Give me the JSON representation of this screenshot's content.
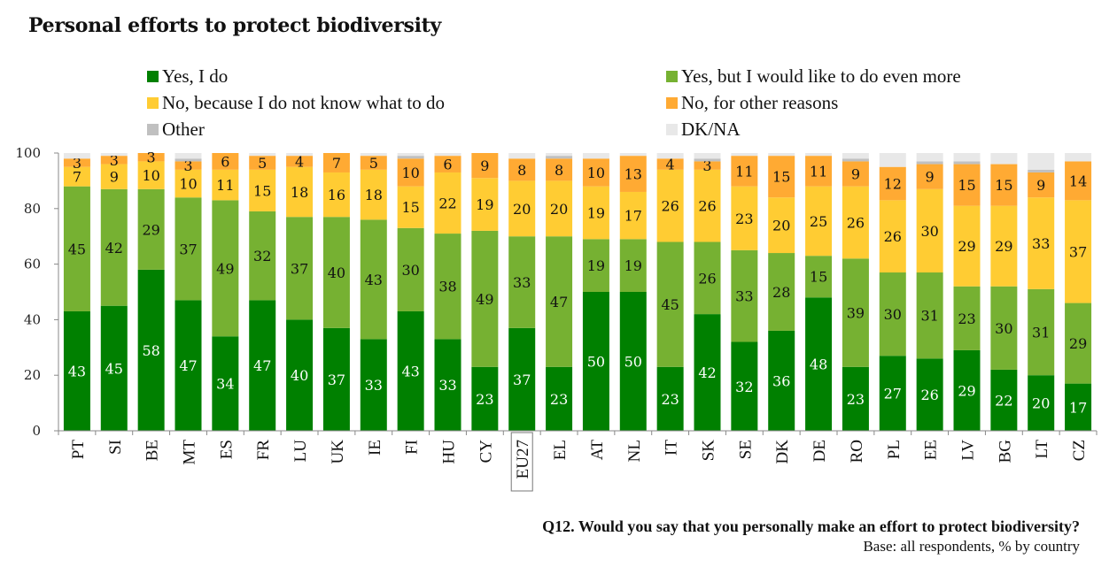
{
  "title": "Personal efforts to protect biodiversity",
  "footnote": {
    "question": "Q12. Would you say that you personally make an effort to protect biodiversity?",
    "base": "Base: all respondents, % by country"
  },
  "colors": {
    "yes": "#008000",
    "yes_more": "#76b132",
    "no_dont_know": "#ffcc33",
    "no_other": "#ffaa33",
    "other": "#c0c0c0",
    "dk_na": "#e8e8e8"
  },
  "chart_data": {
    "type": "bar",
    "stacked": true,
    "title": "Personal efforts to protect biodiversity",
    "xlabel": "",
    "ylabel": "",
    "ylim": [
      0,
      100
    ],
    "yticks": [
      0,
      20,
      40,
      60,
      80,
      100
    ],
    "grid": false,
    "legend_position": "top",
    "highlighted_category": "EU27",
    "categories": [
      "PT",
      "SI",
      "BE",
      "MT",
      "ES",
      "FR",
      "LU",
      "UK",
      "IE",
      "FI",
      "HU",
      "CY",
      "EU27",
      "EL",
      "AT",
      "NL",
      "IT",
      "SK",
      "SE",
      "DK",
      "DE",
      "RO",
      "PL",
      "EE",
      "LV",
      "BG",
      "LT",
      "CZ"
    ],
    "series": [
      {
        "key": "yes",
        "name": "Yes, I do",
        "values": [
          43,
          45,
          58,
          47,
          34,
          47,
          40,
          37,
          33,
          43,
          33,
          23,
          37,
          23,
          50,
          50,
          23,
          42,
          32,
          36,
          48,
          23,
          27,
          26,
          29,
          22,
          20,
          17
        ]
      },
      {
        "key": "yes_more",
        "name": "Yes, but I would like to do even more",
        "values": [
          45,
          42,
          29,
          37,
          49,
          32,
          37,
          40,
          43,
          30,
          38,
          49,
          33,
          47,
          19,
          19,
          45,
          26,
          33,
          28,
          15,
          39,
          30,
          31,
          23,
          30,
          31,
          29
        ]
      },
      {
        "key": "no_dont_know",
        "name": "No, because I do not know what to do",
        "values": [
          7,
          9,
          10,
          10,
          11,
          15,
          18,
          16,
          18,
          15,
          22,
          19,
          20,
          20,
          19,
          17,
          26,
          26,
          23,
          20,
          25,
          26,
          26,
          30,
          29,
          29,
          33,
          37
        ]
      },
      {
        "key": "no_other",
        "name": "No, for other reasons",
        "values": [
          3,
          3,
          3,
          3,
          6,
          5,
          4,
          7,
          5,
          10,
          6,
          9,
          8,
          8,
          10,
          13,
          4,
          3,
          11,
          15,
          11,
          9,
          12,
          9,
          15,
          15,
          9,
          14
        ]
      },
      {
        "key": "other",
        "name": "Other",
        "values": [
          0,
          0,
          0,
          1,
          0,
          0,
          0,
          0,
          0,
          1,
          0,
          0,
          0,
          1,
          0,
          0,
          0,
          1,
          0,
          0,
          0,
          1,
          0,
          1,
          1,
          0,
          1,
          0
        ]
      },
      {
        "key": "dk_na",
        "name": "DK/NA",
        "values": [
          2,
          1,
          0,
          2,
          0,
          1,
          1,
          0,
          1,
          1,
          1,
          0,
          2,
          1,
          2,
          1,
          2,
          2,
          1,
          1,
          1,
          2,
          5,
          3,
          3,
          4,
          6,
          3
        ]
      }
    ]
  },
  "legend": [
    {
      "key": "yes",
      "label": "Yes, I do"
    },
    {
      "key": "yes_more",
      "label": "Yes, but I would like to do even more"
    },
    {
      "key": "no_dont_know",
      "label": "No, because I do not know what to do"
    },
    {
      "key": "no_other",
      "label": "No, for other reasons"
    },
    {
      "key": "other",
      "label": "Other"
    },
    {
      "key": "dk_na",
      "label": "DK/NA"
    }
  ]
}
